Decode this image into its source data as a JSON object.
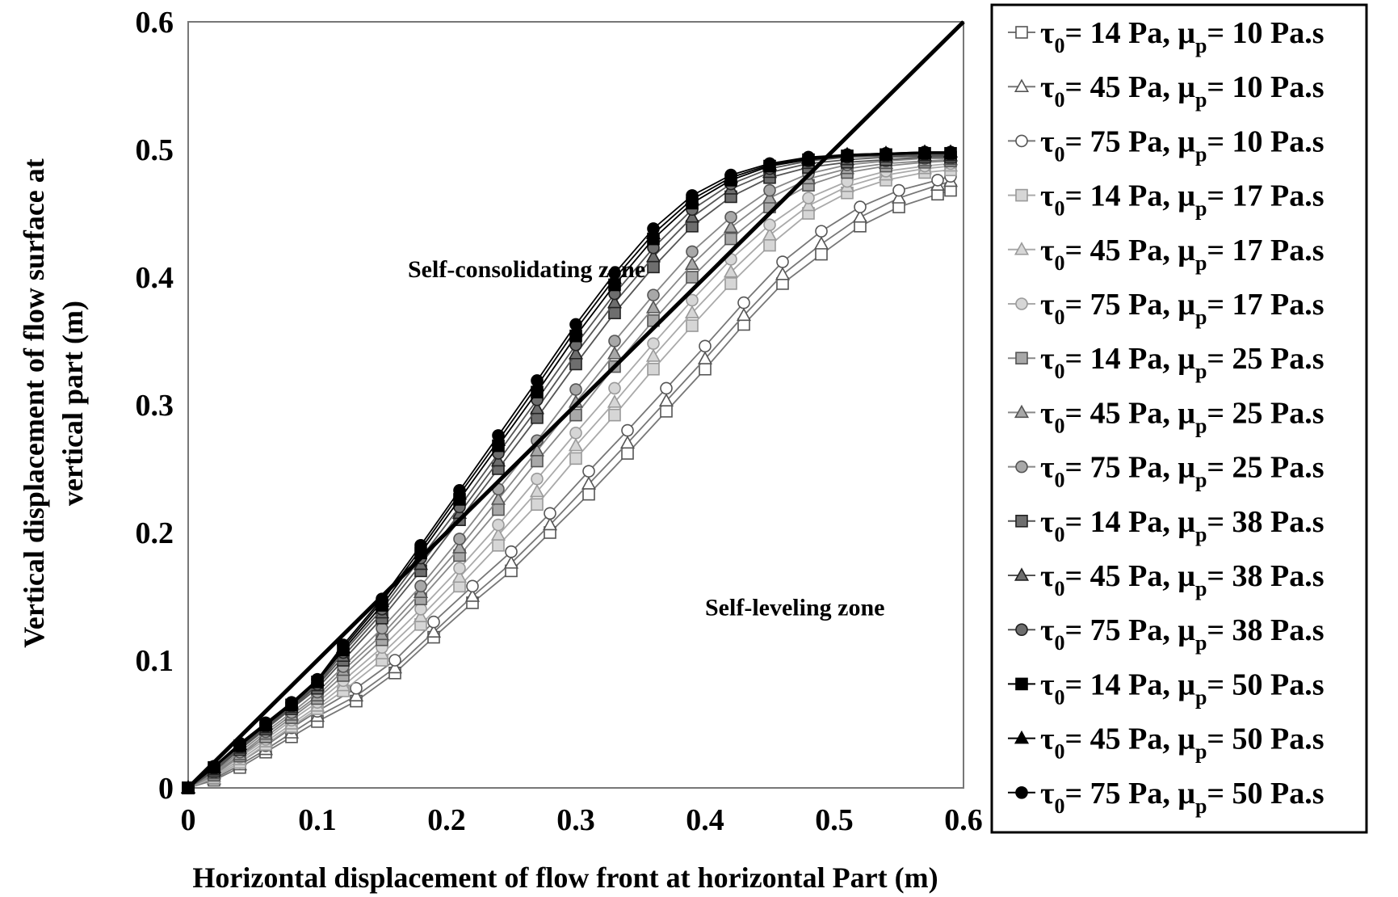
{
  "chart_data": {
    "type": "line",
    "title": "",
    "xlabel": "Horizontal displacement of flow front at horizontal Part (m)",
    "ylabel_lines": [
      "Vertical displacement of flow surface at",
      "vertical part (m)"
    ],
    "xlim": [
      0,
      0.6
    ],
    "ylim": [
      0,
      0.6
    ],
    "xticks": [
      "0",
      "0.1",
      "0.2",
      "0.3",
      "0.4",
      "0.5",
      "0.6"
    ],
    "yticks": [
      "0",
      "0.1",
      "0.2",
      "0.3",
      "0.4",
      "0.5",
      "0.6"
    ],
    "grid": false,
    "legend_position": "right",
    "annotations": [
      {
        "text": "Self-consolidating zone",
        "x": 0.17,
        "y": 0.4
      },
      {
        "text": "Self-leveling zone",
        "x": 0.4,
        "y": 0.135
      }
    ],
    "reference_line": {
      "x": [
        0,
        0.6
      ],
      "y": [
        0,
        0.6
      ]
    },
    "series": [
      {
        "tau": "14",
        "mu": "10",
        "marker": "square",
        "fill": "#ffffff",
        "stroke": "#555555",
        "line": "#777777",
        "x": [
          0,
          0.02,
          0.04,
          0.06,
          0.08,
          0.1,
          0.13,
          0.16,
          0.19,
          0.22,
          0.25,
          0.28,
          0.31,
          0.34,
          0.37,
          0.4,
          0.43,
          0.46,
          0.49,
          0.52,
          0.55,
          0.58,
          0.59
        ],
        "y": [
          0,
          0.006,
          0.016,
          0.028,
          0.04,
          0.052,
          0.068,
          0.09,
          0.118,
          0.145,
          0.17,
          0.2,
          0.23,
          0.262,
          0.295,
          0.328,
          0.363,
          0.395,
          0.418,
          0.44,
          0.455,
          0.465,
          0.468
        ]
      },
      {
        "tau": "45",
        "mu": "10",
        "marker": "triangle",
        "fill": "#ffffff",
        "stroke": "#555555",
        "line": "#777777",
        "x": [
          0,
          0.02,
          0.04,
          0.06,
          0.08,
          0.1,
          0.13,
          0.16,
          0.19,
          0.22,
          0.25,
          0.28,
          0.31,
          0.34,
          0.37,
          0.4,
          0.43,
          0.46,
          0.49,
          0.52,
          0.55,
          0.58,
          0.59
        ],
        "y": [
          0,
          0.007,
          0.018,
          0.03,
          0.043,
          0.056,
          0.072,
          0.094,
          0.122,
          0.15,
          0.176,
          0.206,
          0.238,
          0.27,
          0.303,
          0.336,
          0.37,
          0.402,
          0.426,
          0.447,
          0.462,
          0.472,
          0.475
        ]
      },
      {
        "tau": "75",
        "mu": "10",
        "marker": "circle",
        "fill": "#ffffff",
        "stroke": "#555555",
        "line": "#777777",
        "x": [
          0,
          0.02,
          0.04,
          0.06,
          0.08,
          0.1,
          0.13,
          0.16,
          0.19,
          0.22,
          0.25,
          0.28,
          0.31,
          0.34,
          0.37,
          0.4,
          0.43,
          0.46,
          0.49,
          0.52,
          0.55,
          0.58,
          0.59
        ],
        "y": [
          0,
          0.008,
          0.02,
          0.033,
          0.047,
          0.06,
          0.078,
          0.1,
          0.13,
          0.158,
          0.185,
          0.215,
          0.248,
          0.28,
          0.313,
          0.346,
          0.38,
          0.412,
          0.436,
          0.455,
          0.468,
          0.476,
          0.479
        ]
      },
      {
        "tau": "14",
        "mu": "17",
        "marker": "square",
        "fill": "#d6d6d6",
        "stroke": "#9a9a9a",
        "line": "#aaaaaa",
        "x": [
          0,
          0.02,
          0.04,
          0.06,
          0.08,
          0.1,
          0.12,
          0.15,
          0.18,
          0.21,
          0.24,
          0.27,
          0.3,
          0.33,
          0.36,
          0.39,
          0.42,
          0.45,
          0.48,
          0.51,
          0.54,
          0.57,
          0.59
        ],
        "y": [
          0,
          0.008,
          0.02,
          0.034,
          0.048,
          0.062,
          0.076,
          0.1,
          0.128,
          0.158,
          0.19,
          0.222,
          0.258,
          0.292,
          0.328,
          0.362,
          0.395,
          0.425,
          0.45,
          0.466,
          0.476,
          0.482,
          0.484
        ]
      },
      {
        "tau": "45",
        "mu": "17",
        "marker": "triangle",
        "fill": "#d6d6d6",
        "stroke": "#9a9a9a",
        "line": "#aaaaaa",
        "x": [
          0,
          0.02,
          0.04,
          0.06,
          0.08,
          0.1,
          0.12,
          0.15,
          0.18,
          0.21,
          0.24,
          0.27,
          0.3,
          0.33,
          0.36,
          0.39,
          0.42,
          0.45,
          0.48,
          0.51,
          0.54,
          0.57,
          0.59
        ],
        "y": [
          0,
          0.009,
          0.022,
          0.036,
          0.05,
          0.064,
          0.08,
          0.105,
          0.134,
          0.165,
          0.198,
          0.232,
          0.268,
          0.302,
          0.338,
          0.372,
          0.404,
          0.433,
          0.456,
          0.471,
          0.48,
          0.485,
          0.487
        ]
      },
      {
        "tau": "75",
        "mu": "17",
        "marker": "circle",
        "fill": "#d6d6d6",
        "stroke": "#9a9a9a",
        "line": "#aaaaaa",
        "x": [
          0,
          0.02,
          0.04,
          0.06,
          0.08,
          0.1,
          0.12,
          0.15,
          0.18,
          0.21,
          0.24,
          0.27,
          0.3,
          0.33,
          0.36,
          0.39,
          0.42,
          0.45,
          0.48,
          0.51,
          0.54,
          0.57,
          0.59
        ],
        "y": [
          0,
          0.01,
          0.024,
          0.038,
          0.053,
          0.067,
          0.084,
          0.11,
          0.14,
          0.172,
          0.206,
          0.242,
          0.278,
          0.313,
          0.348,
          0.382,
          0.414,
          0.441,
          0.462,
          0.475,
          0.483,
          0.487,
          0.489
        ]
      },
      {
        "tau": "14",
        "mu": "25",
        "marker": "square",
        "fill": "#a8a8a8",
        "stroke": "#555555",
        "line": "#888888",
        "x": [
          0,
          0.02,
          0.04,
          0.06,
          0.08,
          0.1,
          0.12,
          0.15,
          0.18,
          0.21,
          0.24,
          0.27,
          0.3,
          0.33,
          0.36,
          0.39,
          0.42,
          0.45,
          0.48,
          0.51,
          0.54,
          0.57,
          0.59
        ],
        "y": [
          0,
          0.01,
          0.025,
          0.04,
          0.055,
          0.07,
          0.088,
          0.116,
          0.148,
          0.182,
          0.218,
          0.256,
          0.292,
          0.33,
          0.366,
          0.4,
          0.43,
          0.455,
          0.472,
          0.482,
          0.487,
          0.49,
          0.491
        ]
      },
      {
        "tau": "45",
        "mu": "25",
        "marker": "triangle",
        "fill": "#a8a8a8",
        "stroke": "#555555",
        "line": "#888888",
        "x": [
          0,
          0.02,
          0.04,
          0.06,
          0.08,
          0.1,
          0.12,
          0.15,
          0.18,
          0.21,
          0.24,
          0.27,
          0.3,
          0.33,
          0.36,
          0.39,
          0.42,
          0.45,
          0.48,
          0.51,
          0.54,
          0.57,
          0.59
        ],
        "y": [
          0,
          0.011,
          0.026,
          0.042,
          0.057,
          0.072,
          0.092,
          0.12,
          0.153,
          0.188,
          0.226,
          0.264,
          0.302,
          0.34,
          0.376,
          0.41,
          0.439,
          0.462,
          0.477,
          0.485,
          0.489,
          0.491,
          0.492
        ]
      },
      {
        "tau": "75",
        "mu": "25",
        "marker": "circle",
        "fill": "#a8a8a8",
        "stroke": "#555555",
        "line": "#888888",
        "x": [
          0,
          0.02,
          0.04,
          0.06,
          0.08,
          0.1,
          0.12,
          0.15,
          0.18,
          0.21,
          0.24,
          0.27,
          0.3,
          0.33,
          0.36,
          0.39,
          0.42,
          0.45,
          0.48,
          0.51,
          0.54,
          0.57,
          0.59
        ],
        "y": [
          0,
          0.012,
          0.028,
          0.044,
          0.059,
          0.075,
          0.095,
          0.125,
          0.158,
          0.195,
          0.234,
          0.272,
          0.312,
          0.35,
          0.386,
          0.42,
          0.447,
          0.468,
          0.481,
          0.488,
          0.491,
          0.493,
          0.493
        ]
      },
      {
        "tau": "14",
        "mu": "38",
        "marker": "square",
        "fill": "#6e6e6e",
        "stroke": "#222222",
        "line": "#555555",
        "x": [
          0,
          0.02,
          0.04,
          0.06,
          0.08,
          0.1,
          0.12,
          0.15,
          0.18,
          0.21,
          0.24,
          0.27,
          0.3,
          0.33,
          0.36,
          0.39,
          0.42,
          0.45,
          0.48,
          0.51,
          0.54,
          0.57,
          0.59
        ],
        "y": [
          0,
          0.013,
          0.03,
          0.046,
          0.062,
          0.078,
          0.1,
          0.133,
          0.17,
          0.21,
          0.25,
          0.29,
          0.332,
          0.372,
          0.408,
          0.44,
          0.463,
          0.478,
          0.486,
          0.49,
          0.492,
          0.494,
          0.494
        ]
      },
      {
        "tau": "45",
        "mu": "38",
        "marker": "triangle",
        "fill": "#6e6e6e",
        "stroke": "#222222",
        "line": "#555555",
        "x": [
          0,
          0.02,
          0.04,
          0.06,
          0.08,
          0.1,
          0.12,
          0.15,
          0.18,
          0.21,
          0.24,
          0.27,
          0.3,
          0.33,
          0.36,
          0.39,
          0.42,
          0.45,
          0.48,
          0.51,
          0.54,
          0.57,
          0.59
        ],
        "y": [
          0,
          0.014,
          0.031,
          0.047,
          0.063,
          0.08,
          0.103,
          0.137,
          0.175,
          0.215,
          0.256,
          0.297,
          0.34,
          0.38,
          0.416,
          0.447,
          0.469,
          0.482,
          0.489,
          0.492,
          0.494,
          0.495,
          0.495
        ]
      },
      {
        "tau": "75",
        "mu": "38",
        "marker": "circle",
        "fill": "#6e6e6e",
        "stroke": "#222222",
        "line": "#555555",
        "x": [
          0,
          0.02,
          0.04,
          0.06,
          0.08,
          0.1,
          0.12,
          0.15,
          0.18,
          0.21,
          0.24,
          0.27,
          0.3,
          0.33,
          0.36,
          0.39,
          0.42,
          0.45,
          0.48,
          0.51,
          0.54,
          0.57,
          0.59
        ],
        "y": [
          0,
          0.015,
          0.032,
          0.048,
          0.064,
          0.081,
          0.106,
          0.14,
          0.18,
          0.22,
          0.262,
          0.304,
          0.347,
          0.387,
          0.423,
          0.453,
          0.473,
          0.485,
          0.491,
          0.494,
          0.495,
          0.496,
          0.496
        ]
      },
      {
        "tau": "14",
        "mu": "50",
        "marker": "square",
        "fill": "#000000",
        "stroke": "#000000",
        "line": "#000000",
        "x": [
          0,
          0.02,
          0.04,
          0.06,
          0.08,
          0.1,
          0.12,
          0.15,
          0.18,
          0.21,
          0.24,
          0.27,
          0.3,
          0.33,
          0.36,
          0.39,
          0.42,
          0.45,
          0.48,
          0.51,
          0.54,
          0.57,
          0.59
        ],
        "y": [
          0,
          0.016,
          0.033,
          0.049,
          0.065,
          0.083,
          0.108,
          0.143,
          0.184,
          0.226,
          0.268,
          0.31,
          0.354,
          0.394,
          0.43,
          0.458,
          0.476,
          0.487,
          0.492,
          0.495,
          0.496,
          0.497,
          0.497
        ]
      },
      {
        "tau": "45",
        "mu": "50",
        "marker": "triangle",
        "fill": "#000000",
        "stroke": "#000000",
        "line": "#000000",
        "x": [
          0,
          0.02,
          0.04,
          0.06,
          0.08,
          0.1,
          0.12,
          0.15,
          0.18,
          0.21,
          0.24,
          0.27,
          0.3,
          0.33,
          0.36,
          0.39,
          0.42,
          0.45,
          0.48,
          0.51,
          0.54,
          0.57,
          0.59
        ],
        "y": [
          0,
          0.016,
          0.034,
          0.05,
          0.066,
          0.084,
          0.11,
          0.146,
          0.187,
          0.23,
          0.272,
          0.315,
          0.359,
          0.399,
          0.434,
          0.461,
          0.478,
          0.488,
          0.493,
          0.496,
          0.497,
          0.498,
          0.498
        ]
      },
      {
        "tau": "75",
        "mu": "50",
        "marker": "circle",
        "fill": "#000000",
        "stroke": "#000000",
        "line": "#000000",
        "x": [
          0,
          0.02,
          0.04,
          0.06,
          0.08,
          0.1,
          0.12,
          0.15,
          0.18,
          0.21,
          0.24,
          0.27,
          0.3,
          0.33,
          0.36,
          0.39,
          0.42,
          0.45,
          0.48,
          0.51,
          0.54,
          0.57,
          0.59
        ],
        "y": [
          0,
          0.017,
          0.035,
          0.051,
          0.067,
          0.085,
          0.112,
          0.148,
          0.19,
          0.233,
          0.276,
          0.319,
          0.363,
          0.403,
          0.438,
          0.464,
          0.48,
          0.489,
          0.494,
          0.496,
          0.497,
          0.498,
          0.498
        ]
      }
    ],
    "legend_parts": {
      "tau": "τ",
      "tau_sub": "0",
      "mu": "μ",
      "mu_sub": "p",
      "eq": "= ",
      "pa": " Pa, ",
      "pas": " Pa.s"
    }
  }
}
